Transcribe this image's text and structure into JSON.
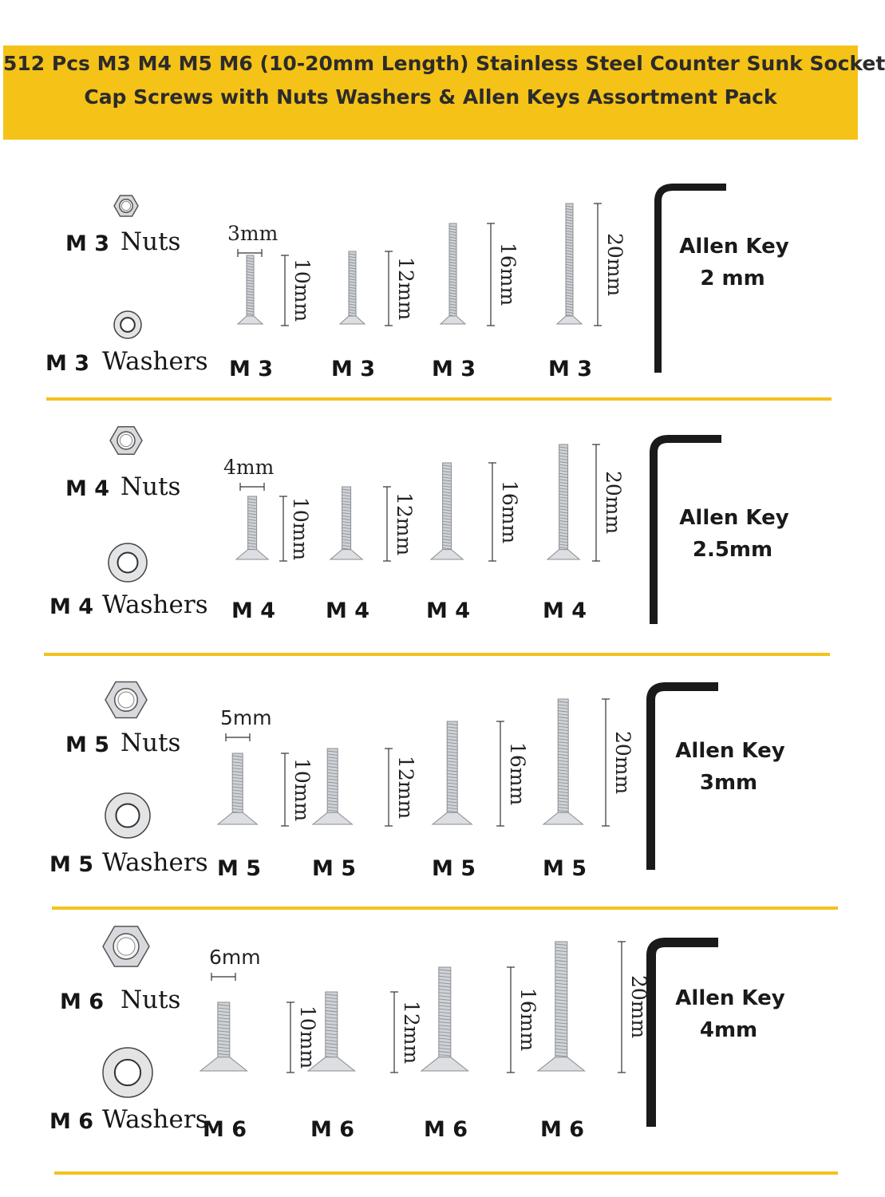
{
  "title": {
    "line1": "512 Pcs M3 M4 M5 M6 (10-20mm Length) Stainless Steel Counter Sunk Socket",
    "line2": "Cap Screws with Nuts Washers & Allen Keys Assortment Pack"
  },
  "sections": [
    {
      "nuts_size": "M 3",
      "nuts_word": "Nuts",
      "washers_size": "M 3",
      "washers_word": "Washers",
      "diameter": "3mm",
      "screws": [
        {
          "length": "10mm",
          "label": "M 3"
        },
        {
          "length": "12mm",
          "label": "M 3"
        },
        {
          "length": "16mm",
          "label": "M 3"
        },
        {
          "length": "20mm",
          "label": "M 3"
        }
      ],
      "key_line1": "Allen Key",
      "key_line2": "2 mm"
    },
    {
      "nuts_size": "M 4",
      "nuts_word": "Nuts",
      "washers_size": "M 4",
      "washers_word": "Washers",
      "diameter": "4mm",
      "screws": [
        {
          "length": "10mm",
          "label": "M 4"
        },
        {
          "length": "12mm",
          "label": "M 4"
        },
        {
          "length": "16mm",
          "label": "M 4"
        },
        {
          "length": "20mm",
          "label": "M 4"
        }
      ],
      "key_line1": "Allen Key",
      "key_line2": "2.5mm"
    },
    {
      "nuts_size": "M 5",
      "nuts_word": "Nuts",
      "washers_size": "M 5",
      "washers_word": "Washers",
      "diameter": "5mm",
      "screws": [
        {
          "length": "10mm",
          "label": "M 5"
        },
        {
          "length": "12mm",
          "label": "M 5"
        },
        {
          "length": "16mm",
          "label": "M 5"
        },
        {
          "length": "20mm",
          "label": "M 5"
        }
      ],
      "key_line1": "Allen Key",
      "key_line2": "3mm"
    },
    {
      "nuts_size": "M 6",
      "nuts_word": "Nuts",
      "washers_size": "M 6",
      "washers_word": "Washers",
      "diameter": "6mm",
      "screws": [
        {
          "length": "10mm",
          "label": "M 6"
        },
        {
          "length": "12mm",
          "label": "M 6"
        },
        {
          "length": "16mm",
          "label": "M 6"
        },
        {
          "length": "20mm",
          "label": "M 6"
        }
      ],
      "key_line1": "Allen Key",
      "key_line2": "4mm"
    }
  ],
  "colors": {
    "banner": "#f5c218",
    "divider": "#f3c21c",
    "metal": "#c9ccd0",
    "allen_key": "#1a1a1a"
  }
}
